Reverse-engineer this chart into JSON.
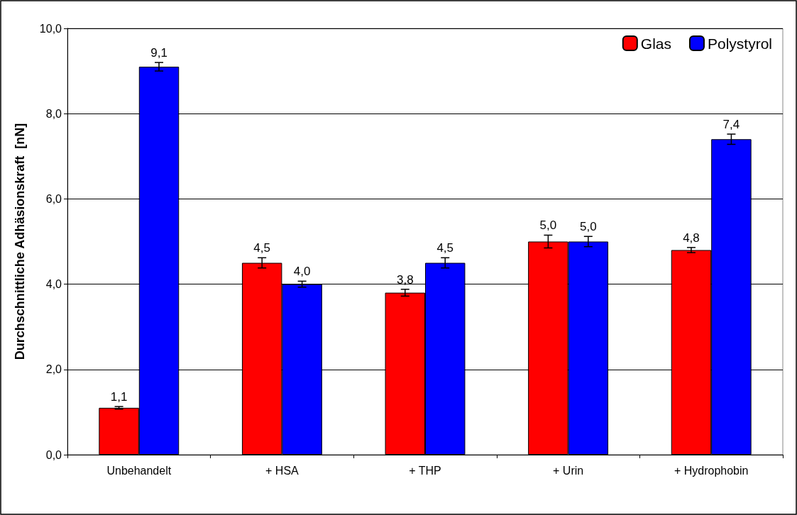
{
  "chart_data": {
    "type": "bar",
    "ylabel": "Durchschnittliche Adhäsionskraft  [nN]",
    "categories": [
      "Unbehandelt",
      "+ HSA",
      "+ THP",
      "+ Urin",
      "+ Hydrophobin"
    ],
    "series": [
      {
        "name": "Glas",
        "color": "#ff0000",
        "values": [
          1.1,
          4.5,
          3.8,
          5.0,
          4.8
        ],
        "errors": [
          0.03,
          0.12,
          0.08,
          0.15,
          0.06
        ],
        "value_labels": [
          "1,1",
          "4,5",
          "3,8",
          "5,0",
          "4,8"
        ]
      },
      {
        "name": "Polystyrol",
        "color": "#0000ff",
        "values": [
          9.1,
          4.0,
          4.5,
          5.0,
          7.4
        ],
        "errors": [
          0.1,
          0.07,
          0.12,
          0.12,
          0.12
        ],
        "value_labels": [
          "9,1",
          "4,0",
          "4,5",
          "5,0",
          "7,4"
        ]
      }
    ],
    "ylim": [
      0,
      10
    ],
    "yticks": [
      {
        "value": 0,
        "label": "0,0"
      },
      {
        "value": 2,
        "label": "2,0"
      },
      {
        "value": 4,
        "label": "4,0"
      },
      {
        "value": 6,
        "label": "6,0"
      },
      {
        "value": 8,
        "label": "8,0"
      },
      {
        "value": 10,
        "label": "10,0"
      }
    ],
    "grid": "y",
    "legend": "top right"
  }
}
